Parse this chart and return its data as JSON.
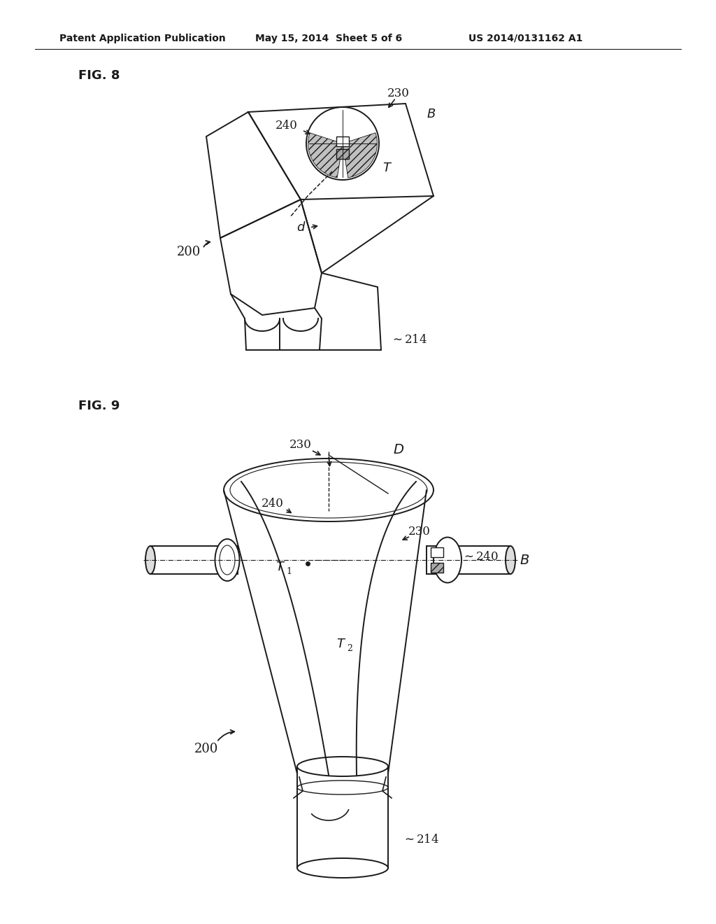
{
  "bg_color": "#ffffff",
  "line_color": "#1a1a1a",
  "text_color": "#1a1a1a",
  "header_text": "Patent Application Publication",
  "header_date": "May 15, 2014  Sheet 5 of 6",
  "header_patent": "US 2014/0131162 A1",
  "fig8_label": "FIG. 8",
  "fig9_label": "FIG. 9"
}
